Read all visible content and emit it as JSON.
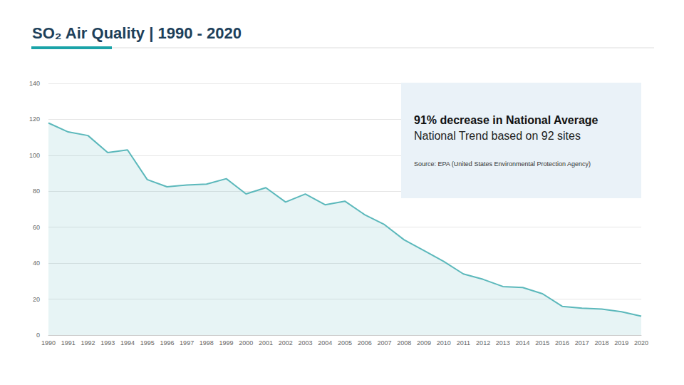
{
  "chart_data": {
    "type": "area",
    "title": "SO₂ Air Quality | 1990 - 2020",
    "annotations": [
      "91% decrease in National Average",
      "National Trend based on 92 sites",
      "Source: EPA (United States Environmental Protection Agency)"
    ],
    "categories": [
      "1990",
      "1991",
      "1992",
      "1993",
      "1994",
      "1995",
      "1996",
      "1997",
      "1998",
      "1999",
      "2000",
      "2001",
      "2002",
      "2003",
      "2004",
      "2005",
      "2006",
      "2007",
      "2008",
      "2009",
      "2010",
      "2011",
      "2012",
      "2013",
      "2014",
      "2015",
      "2016",
      "2017",
      "2018",
      "2019",
      "2020"
    ],
    "values": [
      118,
      113,
      111,
      101.5,
      103,
      86.5,
      82.5,
      83.5,
      84,
      87,
      78.5,
      82,
      74,
      78.5,
      72.5,
      74.5,
      67,
      61.5,
      53,
      47,
      41,
      34,
      31,
      27,
      26.5,
      23,
      16,
      15,
      14.5,
      13,
      10.5
    ],
    "color": "#5bb8bb",
    "ylim": [
      0,
      140
    ],
    "yticks": [
      0,
      20,
      40,
      60,
      80,
      100,
      120,
      140
    ],
    "grid": true
  }
}
